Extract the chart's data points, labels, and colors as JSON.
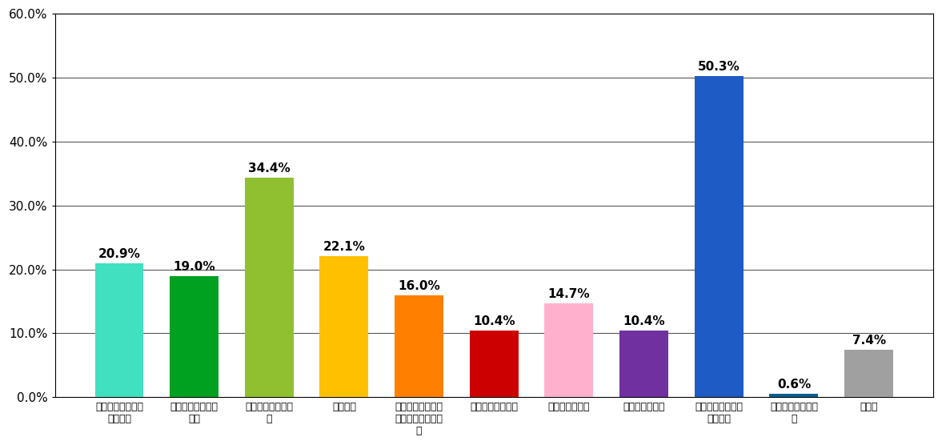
{
  "values": [
    20.9,
    19.0,
    34.4,
    22.1,
    16.0,
    10.4,
    14.7,
    10.4,
    50.3,
    0.6,
    7.4
  ],
  "bar_colors": [
    "#40E0C0",
    "#00A020",
    "#90C030",
    "#FFC000",
    "#FF8000",
    "#CC0000",
    "#FFB0CC",
    "#7030A0",
    "#1F5BC4",
    "#006090",
    "#A0A0A0"
  ],
  "value_labels": [
    "20.9%",
    "19.0%",
    "34.4%",
    "22.1%",
    "16.0%",
    "10.4%",
    "14.7%",
    "10.4%",
    "50.3%",
    "0.6%",
    "7.4%"
  ],
  "x_labels": [
    "医療施設や設備が\n良いから",
    "家族や知人のすす\nめで",
    "良い医師がいるか\nら",
    "近いから",
    "家や通勤先などか\nら対応が良いどか\nら",
    "言葉遣いや態度な",
    "救急受け入れで",
    "評判が良いから",
    "他の医療機関から\nの紹介で",
    "ホームページを見\nて",
    "その他"
  ],
  "ylim": [
    0,
    60
  ],
  "ytick_labels": [
    "0.0%",
    "10.0%",
    "20.0%",
    "30.0%",
    "40.0%",
    "50.0%",
    "60.0%"
  ],
  "background_color": "#ffffff",
  "bar_width": 0.65,
  "value_fontsize": 11,
  "xlabel_fontsize": 9
}
